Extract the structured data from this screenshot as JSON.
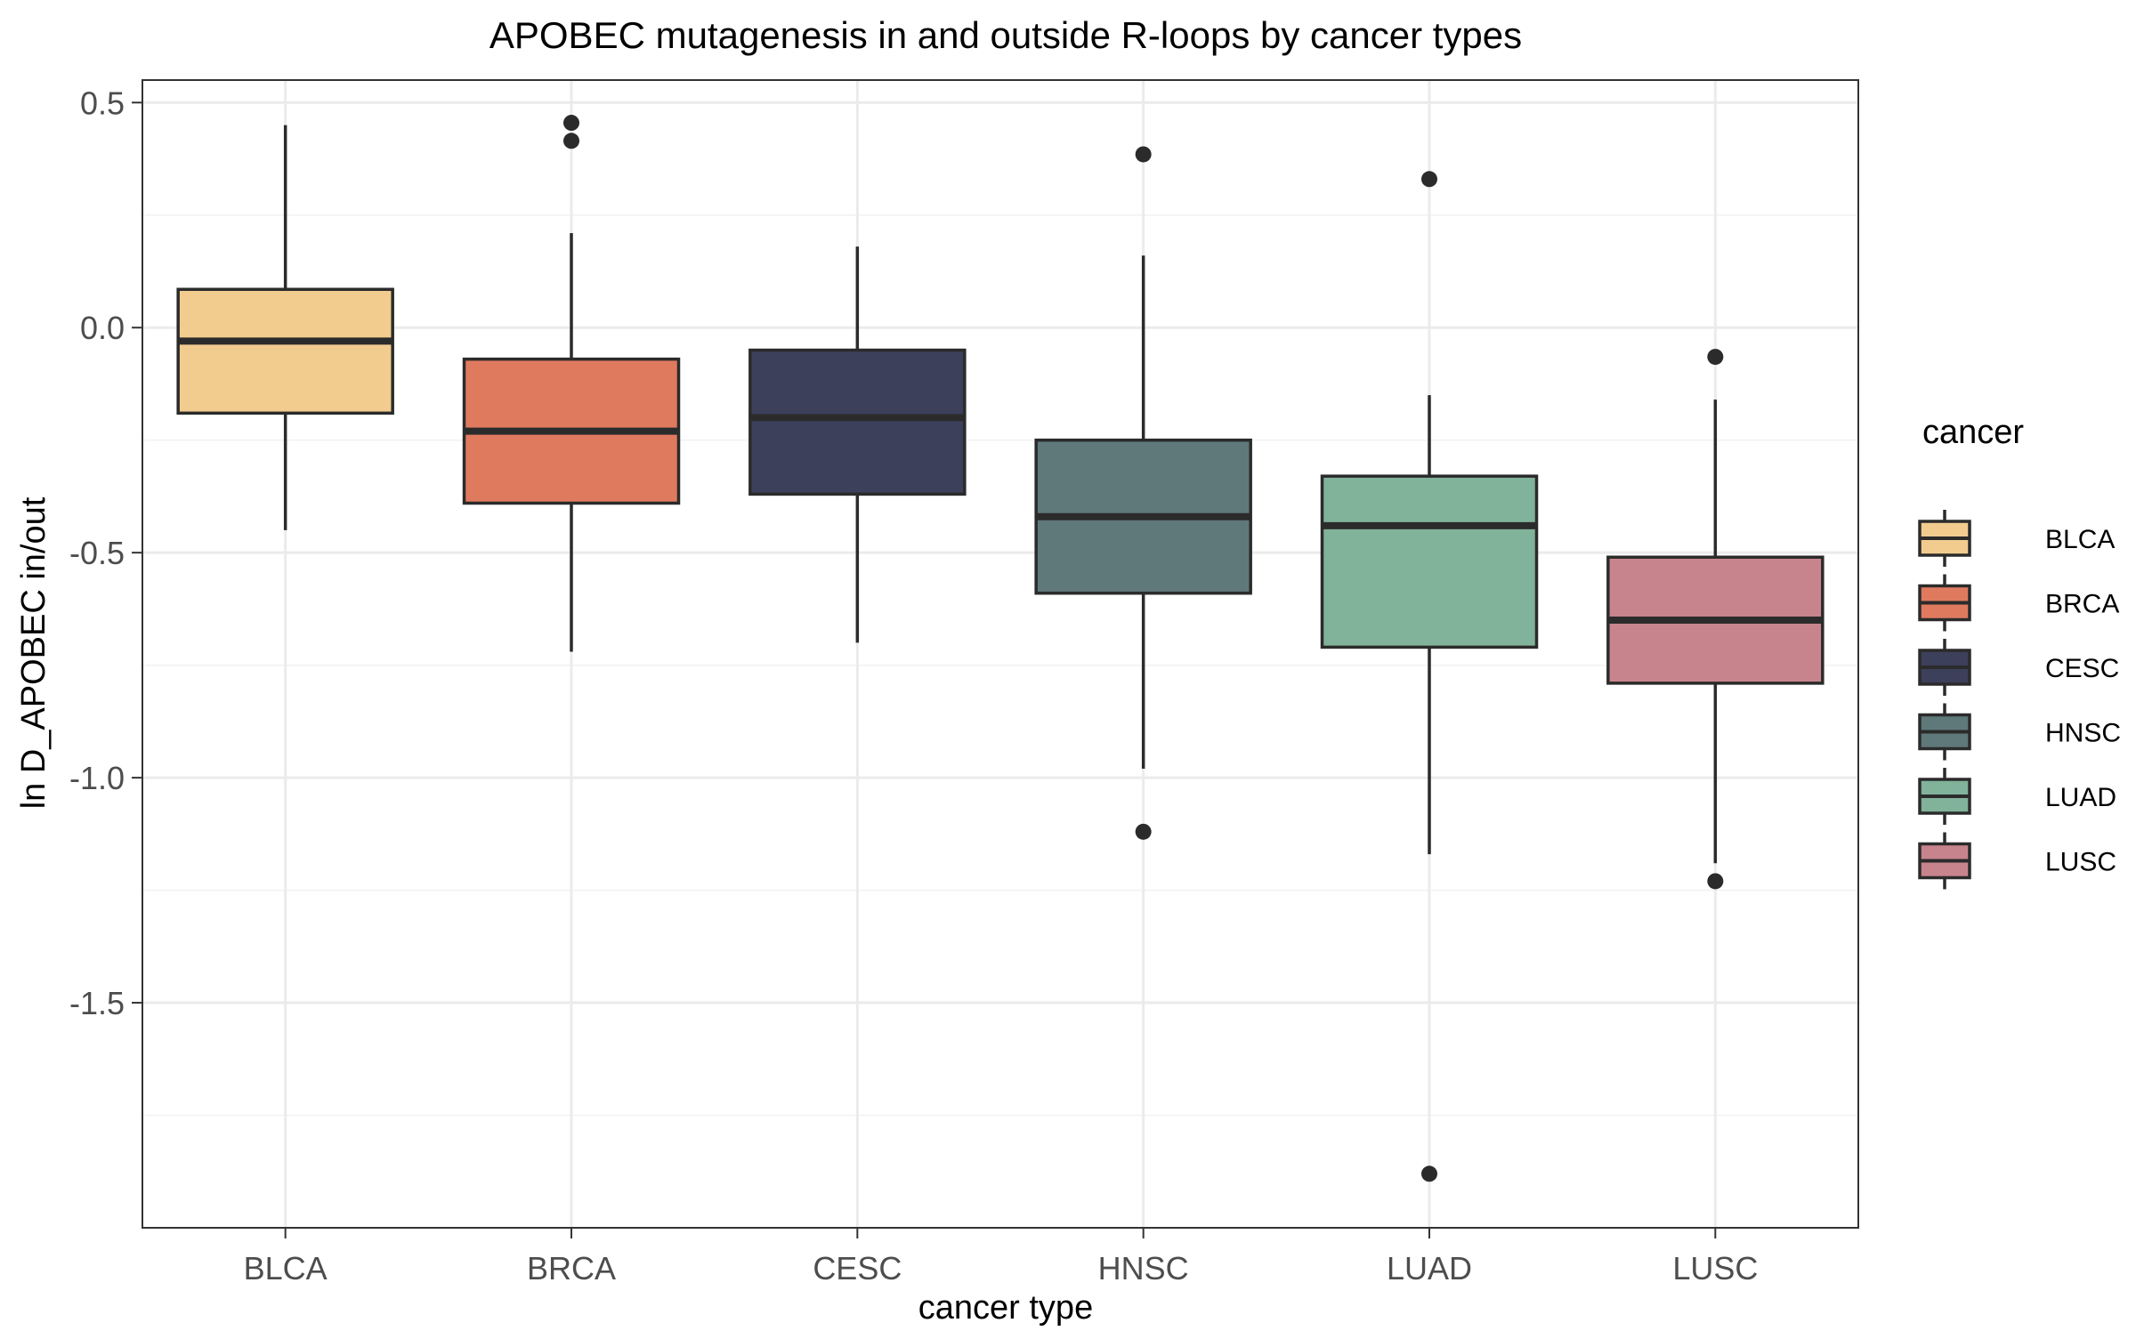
{
  "chart_data": {
    "type": "box",
    "title": "APOBEC mutagenesis in and outside R-loops by cancer types",
    "xlabel": "cancer type",
    "ylabel": "ln D_APOBEC in/out",
    "ylim": [
      -2.0,
      0.55
    ],
    "y_ticks": [
      0.5,
      0.0,
      -0.5,
      -1.0,
      -1.5
    ],
    "y_tick_labels": [
      "0.5",
      "0.0",
      "-0.5",
      "-1.0",
      "-1.5"
    ],
    "y_minor_ticks": [
      0.25,
      -0.25,
      -0.75,
      -1.25,
      -1.75
    ],
    "grid": true,
    "legend": {
      "title": "cancer",
      "placement": "right"
    },
    "categories": [
      "BLCA",
      "BRCA",
      "CESC",
      "HNSC",
      "LUAD",
      "LUSC"
    ],
    "series": [
      {
        "name": "BLCA",
        "color": "#F2CC8F",
        "whisker_low": -0.45,
        "q1": -0.19,
        "median": -0.03,
        "q3": 0.085,
        "whisker_high": 0.45,
        "outliers": []
      },
      {
        "name": "BRCA",
        "color": "#E07A5F",
        "whisker_low": -0.72,
        "q1": -0.39,
        "median": -0.23,
        "q3": -0.07,
        "whisker_high": 0.21,
        "outliers": [
          0.455,
          0.415
        ]
      },
      {
        "name": "CESC",
        "color": "#3D405B",
        "whisker_low": -0.7,
        "q1": -0.37,
        "median": -0.2,
        "q3": -0.05,
        "whisker_high": 0.18,
        "outliers": []
      },
      {
        "name": "HNSC",
        "color": "#5F797B",
        "whisker_low": -0.98,
        "q1": -0.59,
        "median": -0.42,
        "q3": -0.25,
        "whisker_high": 0.16,
        "outliers": [
          0.385,
          -1.12
        ]
      },
      {
        "name": "LUAD",
        "color": "#81B29A",
        "whisker_low": -1.17,
        "q1": -0.71,
        "median": -0.44,
        "q3": -0.33,
        "whisker_high": -0.15,
        "outliers": [
          0.33,
          -1.88
        ]
      },
      {
        "name": "LUSC",
        "color": "#C8848C",
        "whisker_low": -1.19,
        "q1": -0.79,
        "median": -0.65,
        "q3": -0.51,
        "whisker_high": -0.16,
        "outliers": [
          -0.065,
          -1.23
        ]
      }
    ]
  }
}
